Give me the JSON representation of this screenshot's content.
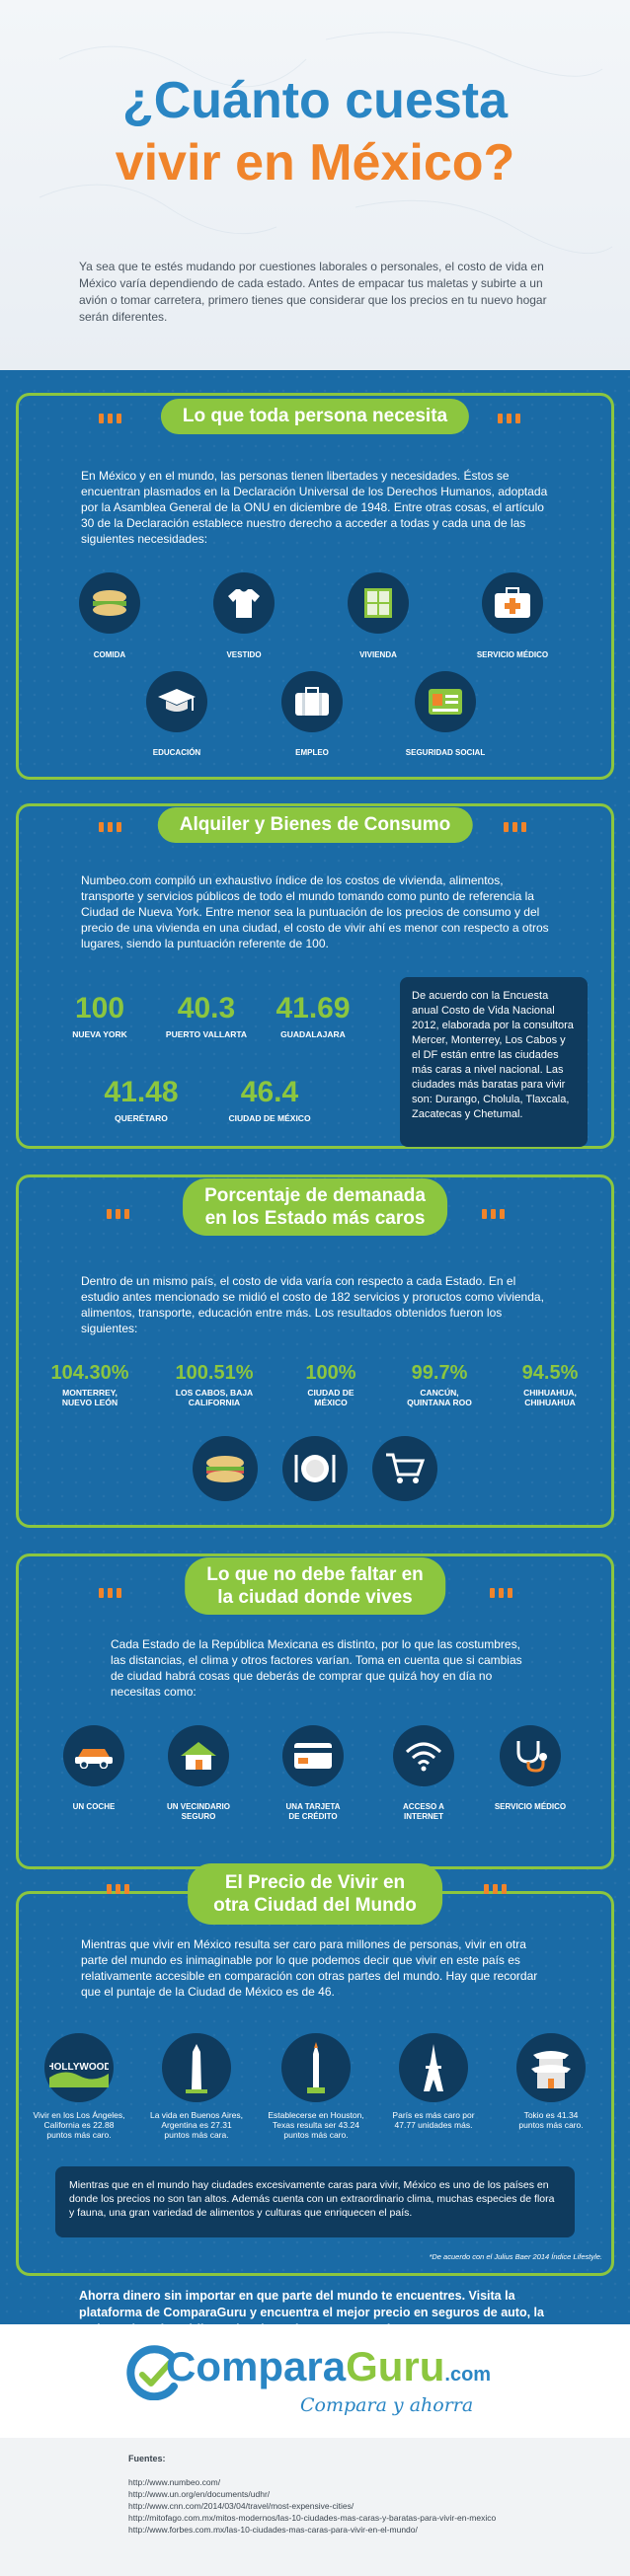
{
  "header": {
    "title_line1": "¿Cuánto cuesta",
    "title_line2": "vivir en México?",
    "intro": "Ya sea que te estés mudando por cuestiones laborales o personales, el costo de vida en México varía dependiendo de cada estado. Antes de empacar tus maletas y subirte a un avión o tomar carretera, primero tienes que considerar que los precios en tu nuevo hogar serán diferentes."
  },
  "s1": {
    "title": "Lo que toda persona necesita",
    "text": "En México y en el mundo, las personas tienen libertades y necesidades. Éstos se encuentran plasmados en la Declaración Universal de los Derechos Humanos, adoptada por la Asamblea General de la ONU en diciembre de 1948. Entre otras cosas, el artículo 30 de la Declaración establece nuestro derecho a acceder a todas y cada una de las   siguientes necesidades:",
    "icons": [
      "COMIDA",
      "VESTIDO",
      "VIVIENDA",
      "SERVICIO MÉDICO",
      "EDUCACIÓN",
      "EMPLEO",
      "SEGURIDAD SOCIAL"
    ]
  },
  "s2": {
    "title": "Alquiler y Bienes de Consumo",
    "text": "Numbeo.com compiló un exhaustivo índice de los costos de vivienda, alimentos, transporte y servicios públicos de todo el mundo tomando como punto de referencia la Ciudad de Nueva York. Entre menor sea la puntuación de los precios de consumo y del precio de una vivienda en una ciudad, el costo de vivir ahí es menor con respecto a otros lugares, siendo la puntuación referente de 100.",
    "scores": [
      {
        "value": "100",
        "label": "NUEVA YORK"
      },
      {
        "value": "40.3",
        "label": "PUERTO VALLARTA"
      },
      {
        "value": "41.69",
        "label": "GUADALAJARA"
      },
      {
        "value": "41.48",
        "label": "QUERÉTARO"
      },
      {
        "value": "46.4",
        "label": "CIUDAD DE MÉXICO"
      }
    ],
    "box": "De acuerdo con la Encuesta anual Costo de Vida Nacional 2012, elaborada por la consultora Mercer, Monterrey, Los Cabos y el DF están entre las ciudades más caras a nivel nacional. Las ciudades más baratas para vivir son: Durango, Cholula, Tlaxcala, Zacatecas y Chetumal."
  },
  "s3": {
    "title_line1": "Porcentaje de demanada",
    "title_line2": "en los Estado más caros",
    "text": "Dentro de un mismo país, el costo de vida varía con respecto a cada Estado. En el estudio antes mencionado se midió el costo de 182 servicios y proructos como vivienda, alimentos, transporte, educación entre más. Los resultados obtenidos fueron los siguientes:",
    "stats": [
      {
        "value": "104.30%",
        "label1": "MONTERREY,",
        "label2": "NUEVO LEÓN"
      },
      {
        "value": "100.51%",
        "label1": "LOS CABOS, BAJA",
        "label2": "CALIFORNIA"
      },
      {
        "value": "100%",
        "label1": "CIUDAD DE",
        "label2": "MÉXICO"
      },
      {
        "value": "99.7%",
        "label1": "CANCÚN,",
        "label2": "QUINTANA ROO"
      },
      {
        "value": "94.5%",
        "label1": "CHIHUAHUA,",
        "label2": "CHIHUAHUA"
      }
    ]
  },
  "s4": {
    "title_line1": "Lo que no debe faltar en",
    "title_line2": "la ciudad donde vives",
    "text": "Cada Estado de la República Mexicana es distinto, por lo que las costumbres, las distancias, el clima y otros factores varían. Toma en cuenta que si cambias de ciudad habrá cosas que deberás de comprar que quizá hoy en día no necesitas como:",
    "items": [
      {
        "l1": "UN COCHE",
        "l2": ""
      },
      {
        "l1": "UN VECINDARIO",
        "l2": "SEGURO"
      },
      {
        "l1": "UNA TARJETA",
        "l2": "DE CRÉDITO"
      },
      {
        "l1": "ACCESO A",
        "l2": "INTERNET"
      },
      {
        "l1": "SERVICIO MÉDICO",
        "l2": ""
      }
    ]
  },
  "s5": {
    "title_line1": "El Precio de Vivir en",
    "title_line2": "otra Ciudad del Mundo",
    "text": "Mientras que vivir en México resulta ser caro para millones de personas, vivir en otra parte del mundo es inimaginable por lo que podemos decir que vivir en este país es relativamente accesible en comparación con otras partes del mundo. Hay que recordar que el puntaje de la Ciudad de México es de 46.",
    "cities": [
      {
        "l1": "Vivir en los Los Ángeles,",
        "l2": "California es 22.88",
        "l3": "puntos más caro."
      },
      {
        "l1": "La vida en Buenos Aires,",
        "l2": "Argentina es 27.31",
        "l3": "puntos más cara."
      },
      {
        "l1": "Establecerse en Houston,",
        "l2": "Texas resulta ser 43.24",
        "l3": "puntos más caro."
      },
      {
        "l1": "París es más caro por",
        "l2": "47.77 unidades más.",
        "l3": ""
      },
      {
        "l1": "Tokio es 41.34",
        "l2": "puntos más caro.",
        "l3": ""
      }
    ],
    "hollywood": "HOLLYWOOD",
    "box": "Mientras que en el mundo hay ciudades excesivamente caras para vivir, México es uno de los países en donde los precios no son tan altos. Además cuenta con un extraordinario clima, muchas especies de flora y fauna, una gran variedad de alimentos y culturas que enriquecen el país.",
    "footnote": "*De acuerdo con el Julius Baer 2014 Índice Lifestyle."
  },
  "cta": "Ahorra dinero sin importar en que parte del mundo te encuentres. Visita la plataforma de ComparaGuru y encuentra el mejor precio en seguros de auto, la mejor tarjeta de crédito y el mejor préstamo personal.",
  "logo": {
    "part1": "Compara",
    "part2": "Guru",
    "dotcom": ".com",
    "tagline": "Compara y ahorra"
  },
  "sources": {
    "title": "Fuentes:",
    "items": [
      "http://www.numbeo.com/",
      "http://www.un.org/en/documents/udhr/",
      "http://www.cnn.com/2014/03/04/travel/most-expensive-cities/",
      "http://mitofago.com.mx/mitos-modernos/las-10-ciudades-mas-caras-y-baratas-para-vivir-en-mexico",
      "http://www.forbes.com.mx/las-10-ciudades-mas-caras-para-vivir-en-el-mundo/"
    ]
  },
  "colors": {
    "blue": "#1a6ba6",
    "green": "#8cc63f",
    "orange": "#f0842b",
    "navy": "#0f3b5e"
  }
}
